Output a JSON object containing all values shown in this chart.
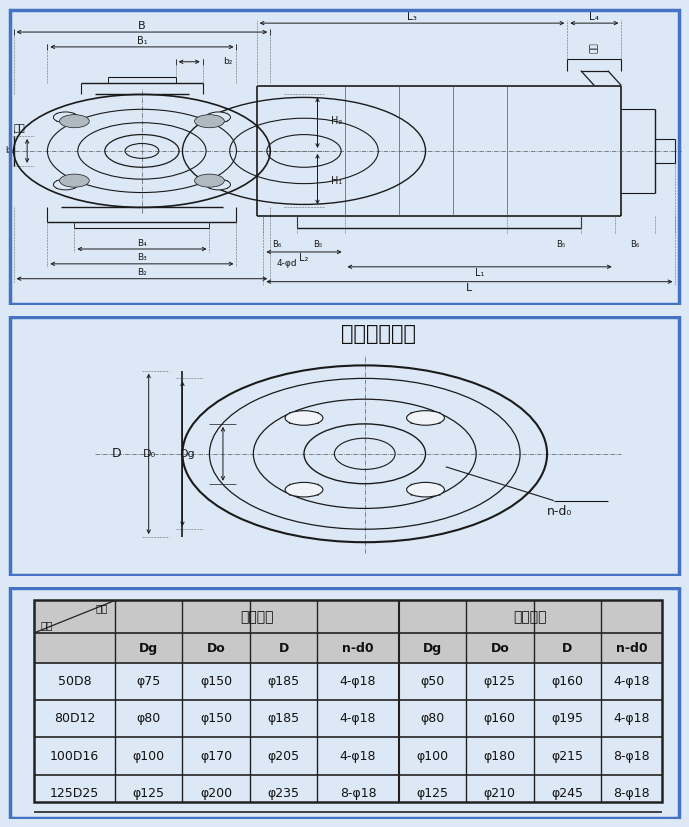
{
  "bg_color": "#dce8f5",
  "border_color": "#4472c4",
  "title_flanges": "吸入吐出法兰",
  "col_suction": "吸入法兰",
  "col_discharge": "吐出法兰",
  "col_headers": [
    "Dg",
    "Do",
    "D",
    "n-d0",
    "Dg",
    "Do",
    "D",
    "n-d0"
  ],
  "rows": [
    [
      "50D8",
      "φ75",
      "φ150",
      "φ185",
      "4-φ18",
      "φ50",
      "φ125",
      "φ160",
      "4-φ18"
    ],
    [
      "80D12",
      "φ80",
      "φ150",
      "φ185",
      "4-φ18",
      "φ80",
      "φ160",
      "φ195",
      "4-φ18"
    ],
    [
      "100D16",
      "φ100",
      "φ170",
      "φ205",
      "4-φ18",
      "φ100",
      "φ180",
      "φ215",
      "8-φ18"
    ],
    [
      "125D25",
      "φ125",
      "φ200",
      "φ235",
      "8-φ18",
      "φ125",
      "φ210",
      "φ245",
      "8-φ18"
    ]
  ],
  "line_color": "#1a1a1a",
  "dim_color": "#111111",
  "table_line_color": "#222222",
  "gray_header": "#c8c8c8",
  "label_jinshui": "进水",
  "label_chushui": "出水",
  "label_xinghaio": "型号",
  "label_chicun": "尺寸"
}
